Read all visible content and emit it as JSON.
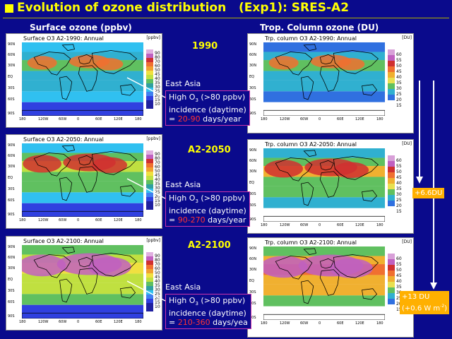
{
  "title": "Evolution of ozone distribution   (Exp1): SRES-A2",
  "columns": {
    "left": "Surface ozone (ppbv)",
    "right": "Trop. Column ozone (DU)"
  },
  "colors": {
    "background": "#0a0a8c",
    "title": "#ffff00",
    "highlight": "#ff3333",
    "badge": "#ffb000"
  },
  "surface_panels": [
    {
      "title": "Surface O3 A2-1990: Annual",
      "unit": "[ppbv]"
    },
    {
      "title": "Surface O3 A2-2050: Annual",
      "unit": "[ppbv]"
    },
    {
      "title": "Surface O3 A2-2100: Annual",
      "unit": "[ppbv]"
    }
  ],
  "column_panels": [
    {
      "title": "Trp. column O3 A2-1990: Annual",
      "unit": "[DU]"
    },
    {
      "title": "Trp. column O3 A2-2050: Annual",
      "unit": "[DU]"
    },
    {
      "title": "Trp. column O3 A2-2100: Annual",
      "unit": "[DU]"
    }
  ],
  "surface_colorbar": [
    "90",
    "80",
    "70",
    "60",
    "50",
    "45",
    "40",
    "35",
    "30",
    "25",
    "20",
    "15",
    "10"
  ],
  "column_colorbar": [
    "60",
    "55",
    "50",
    "45",
    "40",
    "35",
    "30",
    "25",
    "20",
    "15"
  ],
  "lat_labels": [
    "90N",
    "60N",
    "30N",
    "EQ",
    "30S",
    "60S",
    "90S"
  ],
  "lon_labels": [
    "180",
    "120W",
    "60W",
    "0",
    "60E",
    "120E",
    "180"
  ],
  "scenarios": [
    "1990",
    "A2-2050",
    "A2-2100"
  ],
  "region": "East Asia",
  "info": [
    {
      "l1": "High O",
      "sub": "3",
      "l1b": " (>80 ppbv)",
      "l2": "incidence (daytime)",
      "pre": "= ",
      "range": "20-90",
      "post": " days/year"
    },
    {
      "l1": "High O",
      "sub": "3",
      "l1b": " (>80 ppbv)",
      "l2": "incidence (daytime)",
      "pre": "= ",
      "range": "90-270",
      "post": " days/year"
    },
    {
      "l1": "High O",
      "sub": "3",
      "l1b": " (>80 ppbv)",
      "l2": "incidence (daytime)",
      "pre": "= ",
      "range": "210-360",
      "post": " days/yea"
    }
  ],
  "changes": {
    "c2050": "+6.6DU",
    "c2100_l1": "+13 DU",
    "c2100_l2": "(+0.6 W m",
    "c2100_sup": "-2",
    "c2100_end": ")"
  }
}
